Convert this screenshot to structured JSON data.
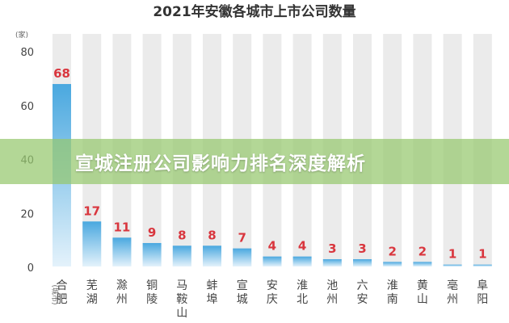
{
  "chart_data": {
    "type": "bar",
    "title": "2021年安徽各城市上市公司数量",
    "y_unit": "(家)",
    "x_unit": "(城市)",
    "ylim": [
      0,
      80
    ],
    "yticks": [
      0,
      20,
      40,
      60,
      80
    ],
    "categories": [
      "合肥",
      "芜湖",
      "滁州",
      "铜陵",
      "马鞍山",
      "蚌埠",
      "宣城",
      "安庆",
      "淮北",
      "池州",
      "六安",
      "淮南",
      "黄山",
      "亳州",
      "阜阳"
    ],
    "values": [
      68,
      17,
      11,
      9,
      8,
      8,
      7,
      4,
      4,
      3,
      3,
      2,
      2,
      1,
      1
    ],
    "colors": {
      "track": "#ebebeb",
      "bar_top": "#4aa8df",
      "bar_bottom": "#e4f2fb",
      "value_label": "#d9363e"
    }
  },
  "overlay": {
    "text": "宣城注册公司影响力排名深度解析"
  }
}
